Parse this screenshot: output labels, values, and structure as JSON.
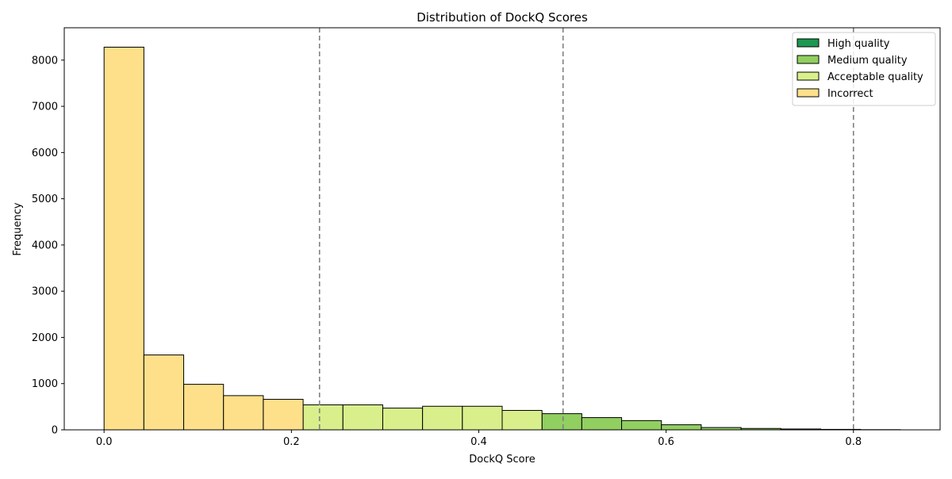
{
  "chart_data": {
    "type": "bar",
    "title": "Distribution of DockQ Scores",
    "xlabel": "DockQ Score",
    "ylabel": "Frequency",
    "xlim": [
      -0.0425,
      0.8925
    ],
    "ylim": [
      0,
      8700
    ],
    "xticks": [
      0.0,
      0.2,
      0.4,
      0.6,
      0.8
    ],
    "xtick_labels": [
      "0.0",
      "0.2",
      "0.4",
      "0.6",
      "0.8"
    ],
    "yticks": [
      0,
      1000,
      2000,
      3000,
      4000,
      5000,
      6000,
      7000,
      8000
    ],
    "ytick_labels": [
      "0",
      "1000",
      "2000",
      "3000",
      "4000",
      "5000",
      "6000",
      "7000",
      "8000"
    ],
    "thresholds": [
      0.23,
      0.49,
      0.8
    ],
    "legend_position": "top-right",
    "grid": false,
    "series": [
      {
        "name": "High quality",
        "color": "#1a9850",
        "bins": []
      },
      {
        "name": "Medium quality",
        "color": "#91cf60",
        "bins": [
          {
            "x0": 0.4675,
            "x1": 0.51,
            "value": 350
          },
          {
            "x0": 0.51,
            "x1": 0.5525,
            "value": 265
          },
          {
            "x0": 0.5525,
            "x1": 0.595,
            "value": 200
          },
          {
            "x0": 0.595,
            "x1": 0.6375,
            "value": 110
          },
          {
            "x0": 0.6375,
            "x1": 0.68,
            "value": 50
          },
          {
            "x0": 0.68,
            "x1": 0.7225,
            "value": 30
          },
          {
            "x0": 0.7225,
            "x1": 0.765,
            "value": 18
          },
          {
            "x0": 0.765,
            "x1": 0.8075,
            "value": 10
          },
          {
            "x0": 0.8075,
            "x1": 0.85,
            "value": 4
          }
        ]
      },
      {
        "name": "Acceptable quality",
        "color": "#d9ef8b",
        "bins": [
          {
            "x0": 0.2125,
            "x1": 0.255,
            "value": 540
          },
          {
            "x0": 0.255,
            "x1": 0.2975,
            "value": 540
          },
          {
            "x0": 0.2975,
            "x1": 0.34,
            "value": 470
          },
          {
            "x0": 0.34,
            "x1": 0.3825,
            "value": 510
          },
          {
            "x0": 0.3825,
            "x1": 0.425,
            "value": 510
          },
          {
            "x0": 0.425,
            "x1": 0.4675,
            "value": 420
          }
        ]
      },
      {
        "name": "Incorrect",
        "color": "#fee08b",
        "bins": [
          {
            "x0": 0.0,
            "x1": 0.0425,
            "value": 8280
          },
          {
            "x0": 0.0425,
            "x1": 0.085,
            "value": 1620
          },
          {
            "x0": 0.085,
            "x1": 0.1275,
            "value": 985
          },
          {
            "x0": 0.1275,
            "x1": 0.17,
            "value": 740
          },
          {
            "x0": 0.17,
            "x1": 0.2125,
            "value": 660
          }
        ]
      }
    ]
  }
}
